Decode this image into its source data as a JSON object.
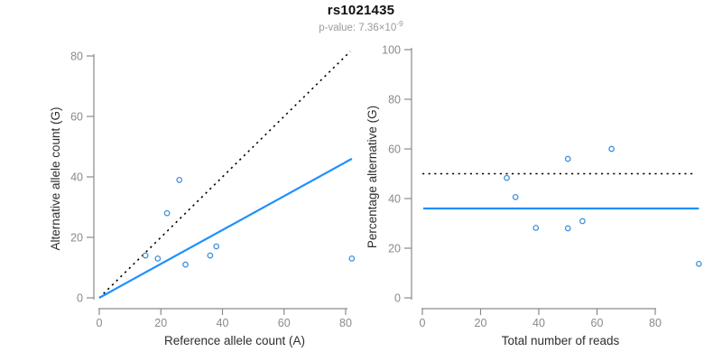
{
  "header": {
    "title": "rs1021435",
    "pvalue_prefix": "p-value: 7.36×10",
    "pvalue_exponent": "-9"
  },
  "colors": {
    "line_blue": "#1E90FF",
    "point_blue": "#3E8FD8",
    "dotted_black": "#000000",
    "axis": "#8A8A8A",
    "tick_label": "#8A8A8A",
    "axis_title": "#2E2E2E",
    "title": "#111111",
    "subtitle": "#9B9B9B"
  },
  "chart_data": [
    {
      "type": "scatter",
      "id": "allele-counts",
      "xlabel": "Reference allele count (A)",
      "ylabel": "Alternative allele count (G)",
      "xticks": [
        0,
        20,
        40,
        60,
        80
      ],
      "yticks": [
        0,
        20,
        40,
        60,
        80
      ],
      "xlim": [
        0,
        85
      ],
      "ylim": [
        0,
        85
      ],
      "grid": false,
      "marker": "open-circle",
      "points": [
        [
          15,
          14
        ],
        [
          19,
          13
        ],
        [
          22,
          28
        ],
        [
          26,
          39
        ],
        [
          28,
          11
        ],
        [
          36,
          14
        ],
        [
          38,
          17
        ],
        [
          82,
          13
        ]
      ],
      "lines": [
        {
          "name": "identity-line",
          "style": "dotted",
          "color": "black",
          "x1": 0,
          "y1": 0,
          "x2": 81.5,
          "y2": 81.5
        },
        {
          "name": "fit-line",
          "style": "solid",
          "color": "blue",
          "x1": 0,
          "y1": 0,
          "x2": 82,
          "y2": 46
        }
      ]
    },
    {
      "type": "scatter",
      "id": "percentage-alternative",
      "xlabel": "Total number of reads",
      "ylabel": "Percentage alternative (G)",
      "xticks": [
        0,
        20,
        40,
        60,
        80
      ],
      "yticks": [
        0,
        20,
        40,
        60,
        80,
        100
      ],
      "xlim": [
        0,
        99
      ],
      "ylim": [
        0,
        100
      ],
      "grid": false,
      "marker": "open-circle",
      "points": [
        [
          29,
          48.3
        ],
        [
          32,
          40.6
        ],
        [
          39,
          28.2
        ],
        [
          50,
          56
        ],
        [
          50,
          28
        ],
        [
          55,
          30.9
        ],
        [
          65,
          60
        ],
        [
          95,
          13.7
        ]
      ],
      "lines": [
        {
          "name": "reference-line-50pct",
          "style": "dotted",
          "color": "black",
          "x1": 0,
          "y1": 50,
          "x2": 93,
          "y2": 50
        },
        {
          "name": "mean-line",
          "style": "solid",
          "color": "blue",
          "x1": 0.3,
          "y1": 36,
          "x2": 95,
          "y2": 36
        }
      ]
    }
  ]
}
